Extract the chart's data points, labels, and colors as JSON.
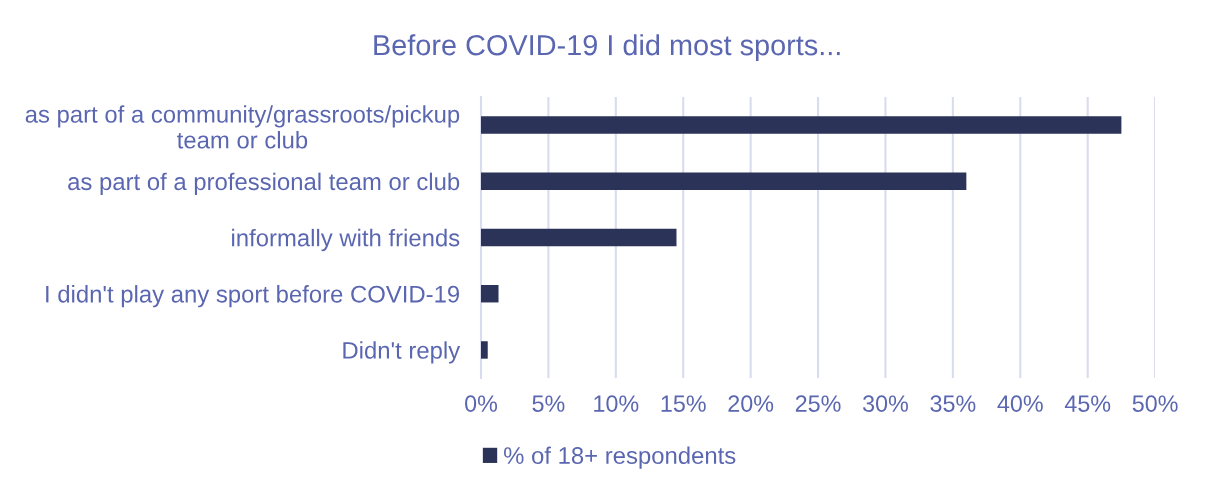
{
  "chart_data": {
    "type": "bar",
    "orientation": "horizontal",
    "title": "Before COVID-19 I did most sports...",
    "categories": [
      "as part of a community/grassroots/pickup\nteam or club",
      "as part of a professional team or club",
      "informally with friends",
      "I didn't play any sport before COVID-19",
      "Didn't reply"
    ],
    "series": [
      {
        "name": "% of 18+ respondents",
        "color": "#2b3358",
        "values": [
          47.5,
          36.0,
          14.5,
          1.3,
          0.5
        ]
      }
    ],
    "xlim": [
      0,
      50
    ],
    "xticks": [
      {
        "value": 0,
        "label": "0%"
      },
      {
        "value": 5,
        "label": "5%"
      },
      {
        "value": 10,
        "label": "10%"
      },
      {
        "value": 15,
        "label": "15%"
      },
      {
        "value": 20,
        "label": "20%"
      },
      {
        "value": 25,
        "label": "25%"
      },
      {
        "value": 30,
        "label": "30%"
      },
      {
        "value": 35,
        "label": "35%"
      },
      {
        "value": 40,
        "label": "40%"
      },
      {
        "value": 45,
        "label": "45%"
      },
      {
        "value": 50,
        "label": "50%"
      }
    ],
    "grid": "x",
    "legend": "bottom"
  }
}
